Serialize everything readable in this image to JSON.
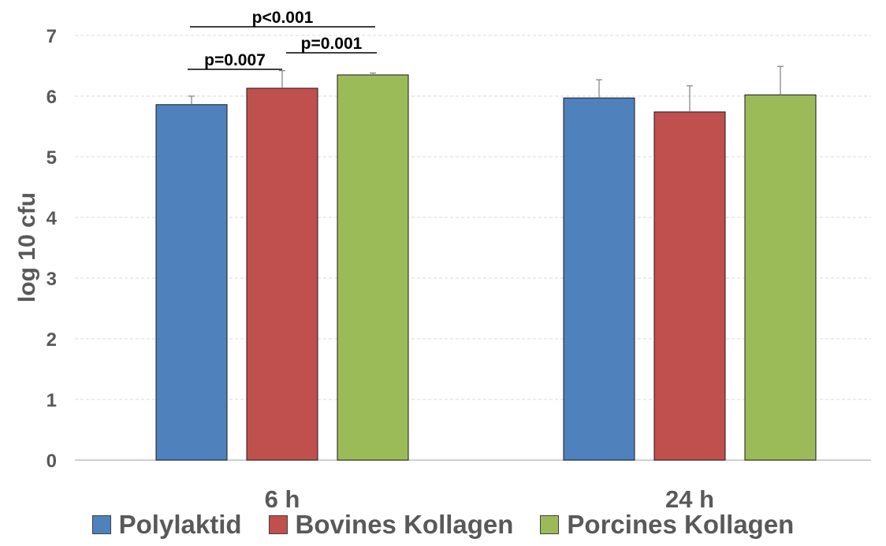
{
  "chart_data": {
    "type": "bar",
    "ylabel": "log 10 cfu",
    "xlabel": "",
    "ylim": [
      0,
      7
    ],
    "yticks": [
      0,
      1,
      2,
      3,
      4,
      5,
      6,
      7
    ],
    "grid": true,
    "categories": [
      "6 h",
      "24 h"
    ],
    "series": [
      {
        "name": "Polylaktid",
        "color": "#4F81BD",
        "values": [
          5.86,
          5.97
        ],
        "errors": [
          0.14,
          0.3
        ]
      },
      {
        "name": "Bovines Kollagen",
        "color": "#C0504D",
        "values": [
          6.13,
          5.74
        ],
        "errors": [
          0.29,
          0.43
        ]
      },
      {
        "name": "Porcines Kollagen",
        "color": "#9BBB59",
        "values": [
          6.35,
          6.02
        ],
        "errors": [
          0.03,
          0.47
        ]
      }
    ],
    "significance": [
      {
        "label": "p=0.007",
        "category": "6 h",
        "from": "Polylaktid",
        "to": "Bovines Kollagen"
      },
      {
        "label": "p=0.001",
        "category": "6 h",
        "from": "Bovines Kollagen",
        "to": "Porcines Kollagen"
      },
      {
        "label": "p<0.001",
        "category": "6 h",
        "from": "Polylaktid",
        "to": "Porcines Kollagen"
      }
    ],
    "legend_position": "bottom"
  }
}
